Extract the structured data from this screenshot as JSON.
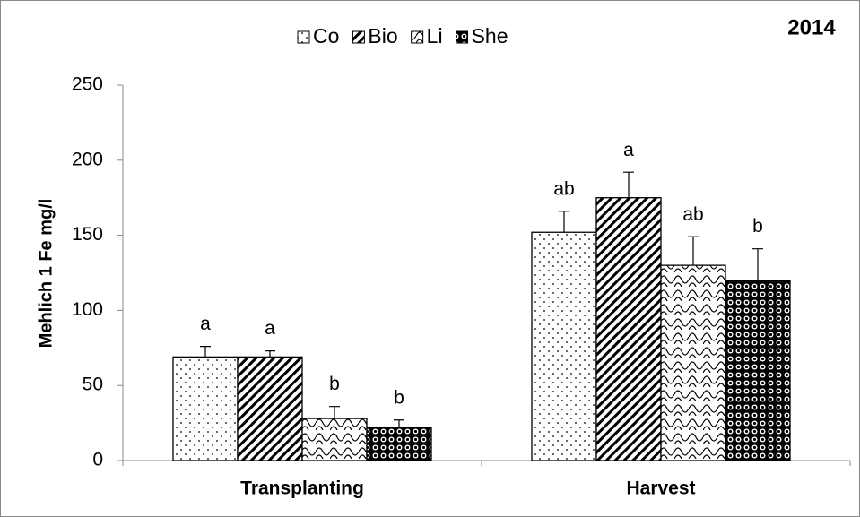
{
  "chart_data": {
    "type": "bar",
    "title": "2014",
    "y_label": "Mehlich 1 Fe mg/l",
    "categories": [
      "Transplanting",
      "Harvest"
    ],
    "series": [
      {
        "name": "Co",
        "color": "#000000",
        "pattern": "dots",
        "values": [
          69,
          152
        ],
        "errors": [
          7,
          14
        ],
        "letters": [
          "a",
          "ab"
        ]
      },
      {
        "name": "Bio",
        "color": "#000000",
        "pattern": "stripes",
        "values": [
          69,
          175
        ],
        "errors": [
          4,
          17
        ],
        "letters": [
          "a",
          "a"
        ]
      },
      {
        "name": "Li",
        "color": "#000000",
        "pattern": "waves",
        "values": [
          28,
          130
        ],
        "errors": [
          8,
          19
        ],
        "letters": [
          "b",
          "ab"
        ]
      },
      {
        "name": "She",
        "color": "#000000",
        "pattern": "beads",
        "values": [
          22,
          120
        ],
        "errors": [
          5,
          21
        ],
        "letters": [
          "b",
          "b"
        ]
      }
    ],
    "ylim": [
      0,
      250
    ],
    "yticks": [
      0,
      50,
      100,
      150,
      200,
      250
    ],
    "grid": false
  }
}
